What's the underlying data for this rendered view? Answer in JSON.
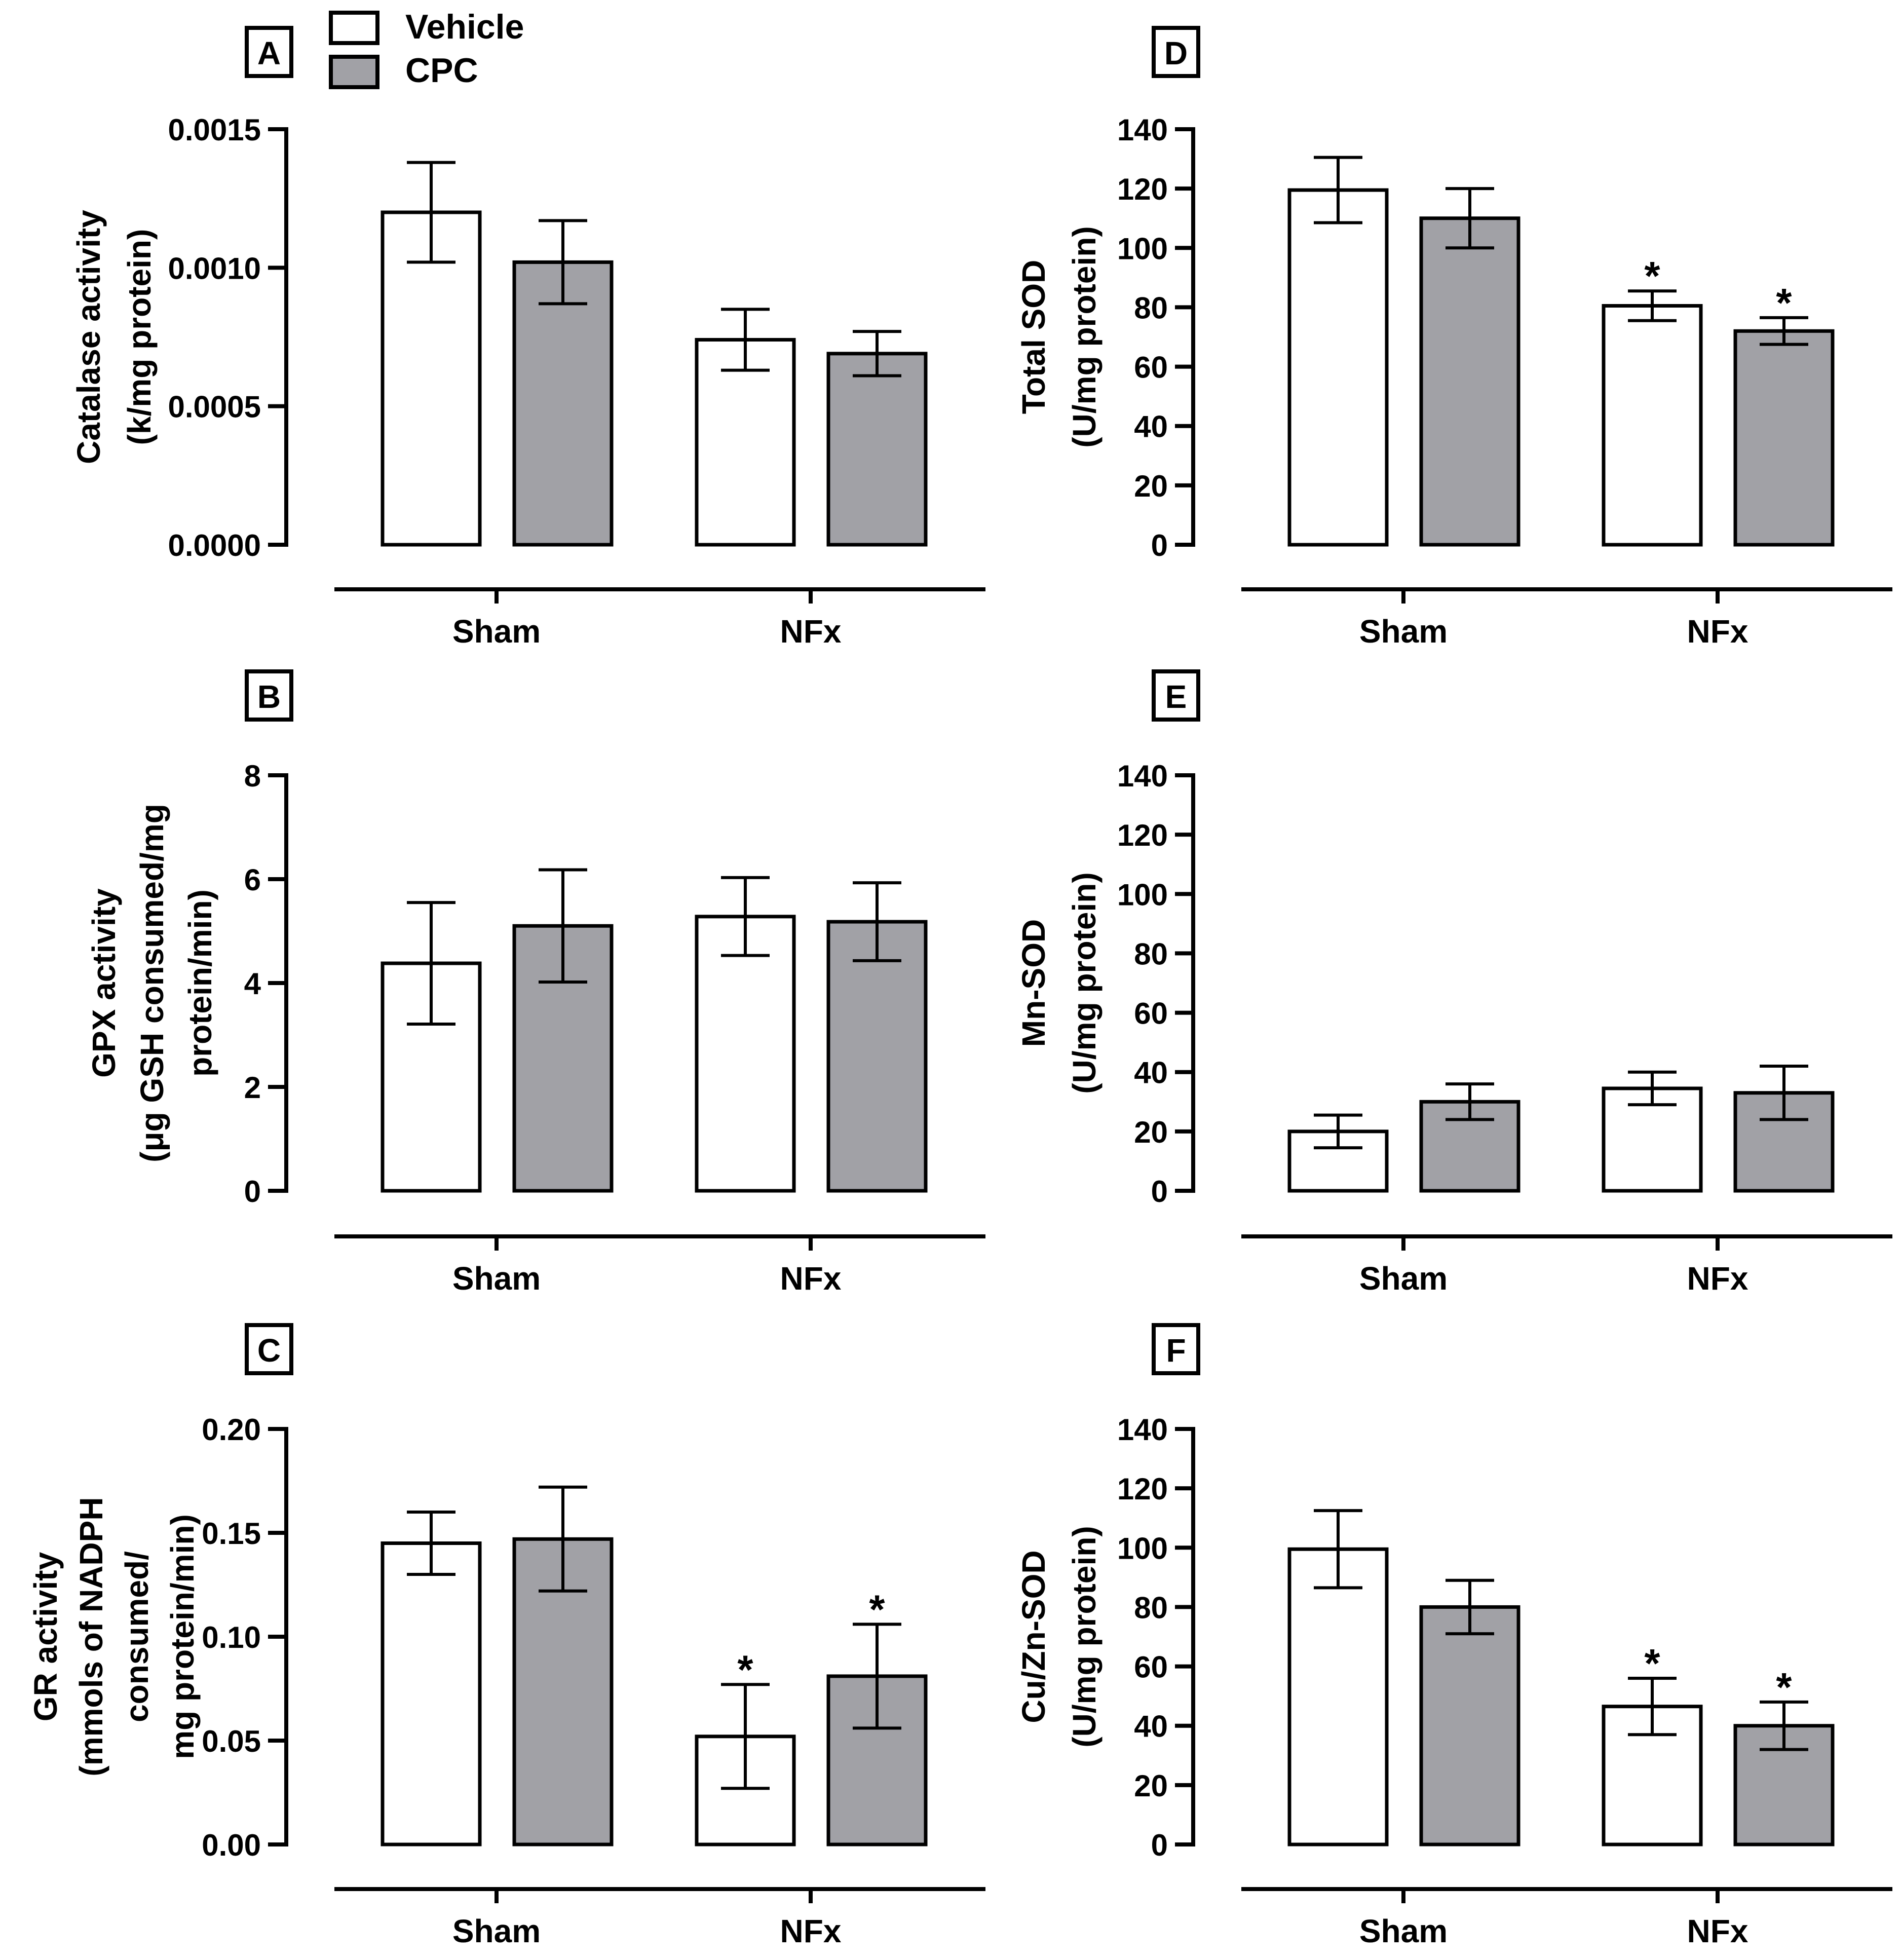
{
  "legend": {
    "items": [
      {
        "label": "Vehicle",
        "color": "#ffffff"
      },
      {
        "label": "CPC",
        "color": "#a1a1a6"
      }
    ]
  },
  "chart_data": [
    {
      "type": "bar",
      "panel": "A",
      "ylabel": [
        "Catalase activity",
        "(k/mg protein)"
      ],
      "categories": [
        "Sham",
        "NFx"
      ],
      "ylim": [
        0,
        0.0015
      ],
      "yticks": [
        0.0,
        0.0005,
        0.001,
        0.0015
      ],
      "ytick_labels": [
        "0.0000",
        "0.0005",
        "0.0010",
        "0.0015"
      ],
      "series": [
        {
          "name": "Vehicle",
          "values": [
            0.0012,
            0.00074
          ],
          "errors": [
            0.00018,
            0.00011
          ],
          "significant": [
            false,
            false
          ]
        },
        {
          "name": "CPC",
          "values": [
            0.00102,
            0.00069
          ],
          "errors": [
            0.00015,
            8e-05
          ],
          "significant": [
            false,
            false
          ]
        }
      ]
    },
    {
      "type": "bar",
      "panel": "B",
      "ylabel": [
        "GPX activity",
        "(μg GSH consumed/mg",
        "protein/min)"
      ],
      "categories": [
        "Sham",
        "NFx"
      ],
      "ylim": [
        0,
        8
      ],
      "yticks": [
        0,
        2,
        4,
        6,
        8
      ],
      "ytick_labels": [
        "0",
        "2",
        "4",
        "6",
        "8"
      ],
      "series": [
        {
          "name": "Vehicle",
          "values": [
            4.38,
            5.28
          ],
          "errors": [
            1.17,
            0.75
          ],
          "significant": [
            false,
            false
          ]
        },
        {
          "name": "CPC",
          "values": [
            5.1,
            5.18
          ],
          "errors": [
            1.08,
            0.75
          ],
          "significant": [
            false,
            false
          ]
        }
      ]
    },
    {
      "type": "bar",
      "panel": "C",
      "ylabel": [
        "GR activity",
        "(mmols of NADPH",
        "consumed/",
        "mg protein/min)"
      ],
      "categories": [
        "Sham",
        "NFx"
      ],
      "ylim": [
        0,
        0.2
      ],
      "yticks": [
        0.0,
        0.05,
        0.1,
        0.15,
        0.2
      ],
      "ytick_labels": [
        "0.00",
        "0.05",
        "0.10",
        "0.15",
        "0.20"
      ],
      "series": [
        {
          "name": "Vehicle",
          "values": [
            0.145,
            0.052
          ],
          "errors": [
            0.015,
            0.025
          ],
          "significant": [
            false,
            true
          ]
        },
        {
          "name": "CPC",
          "values": [
            0.147,
            0.081
          ],
          "errors": [
            0.025,
            0.025
          ],
          "significant": [
            false,
            true
          ]
        }
      ]
    },
    {
      "type": "bar",
      "panel": "D",
      "ylabel": [
        "Total SOD",
        "(U/mg protein)"
      ],
      "categories": [
        "Sham",
        "NFx"
      ],
      "ylim": [
        0,
        140
      ],
      "yticks": [
        0,
        20,
        40,
        60,
        80,
        100,
        120,
        140
      ],
      "ytick_labels": [
        "0",
        "20",
        "40",
        "60",
        "80",
        "100",
        "120",
        "140"
      ],
      "series": [
        {
          "name": "Vehicle",
          "values": [
            119.5,
            80.5
          ],
          "errors": [
            11,
            5
          ],
          "significant": [
            false,
            true
          ]
        },
        {
          "name": "CPC",
          "values": [
            110,
            72
          ],
          "errors": [
            10,
            4.5
          ],
          "significant": [
            false,
            true
          ]
        }
      ]
    },
    {
      "type": "bar",
      "panel": "E",
      "ylabel": [
        "Mn-SOD",
        "(U/mg protein)"
      ],
      "categories": [
        "Sham",
        "NFx"
      ],
      "ylim": [
        0,
        140
      ],
      "yticks": [
        0,
        20,
        40,
        60,
        80,
        100,
        120,
        140
      ],
      "ytick_labels": [
        "0",
        "20",
        "40",
        "60",
        "80",
        "100",
        "120",
        "140"
      ],
      "series": [
        {
          "name": "Vehicle",
          "values": [
            20,
            34.5
          ],
          "errors": [
            5.5,
            5.5
          ],
          "significant": [
            false,
            false
          ]
        },
        {
          "name": "CPC",
          "values": [
            30,
            33
          ],
          "errors": [
            6,
            9
          ],
          "significant": [
            false,
            false
          ]
        }
      ]
    },
    {
      "type": "bar",
      "panel": "F",
      "ylabel": [
        "Cu/Zn-SOD",
        "(U/mg protein)"
      ],
      "categories": [
        "Sham",
        "NFx"
      ],
      "ylim": [
        0,
        140
      ],
      "yticks": [
        0,
        20,
        40,
        60,
        80,
        100,
        120,
        140
      ],
      "ytick_labels": [
        "0",
        "20",
        "40",
        "60",
        "80",
        "100",
        "120",
        "140"
      ],
      "series": [
        {
          "name": "Vehicle",
          "values": [
            99.5,
            46.5
          ],
          "errors": [
            13,
            9.5
          ],
          "significant": [
            false,
            true
          ]
        },
        {
          "name": "CPC",
          "values": [
            80,
            40
          ],
          "errors": [
            9,
            8
          ],
          "significant": [
            false,
            true
          ]
        }
      ]
    }
  ],
  "significance_marker": "*"
}
